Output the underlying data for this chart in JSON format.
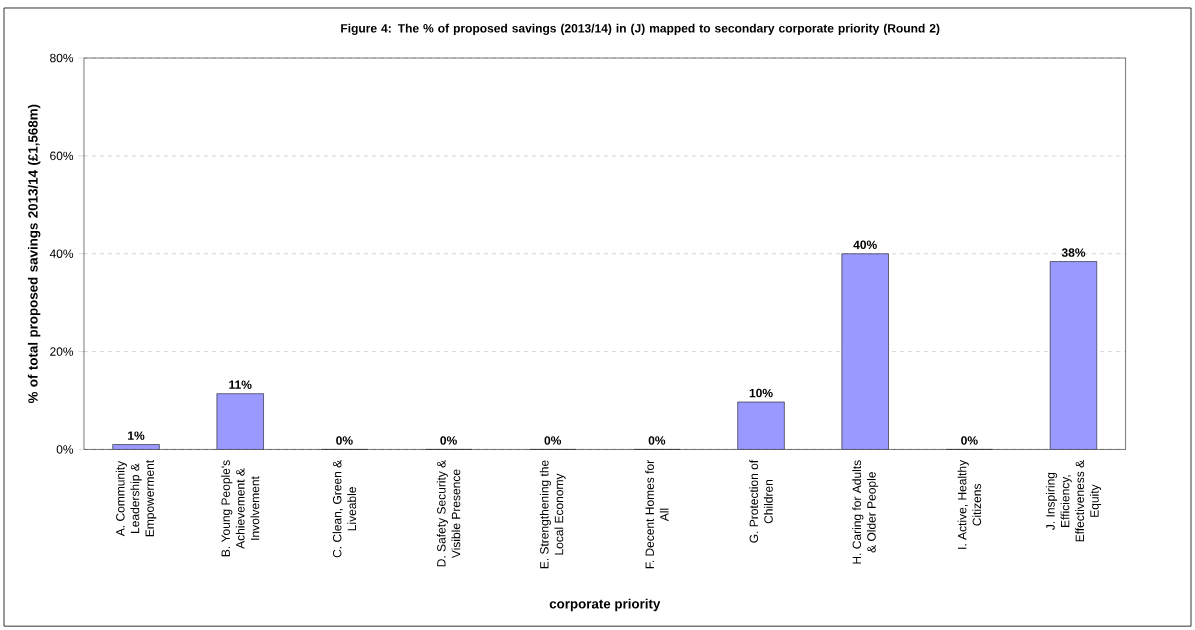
{
  "chart_data": {
    "type": "bar",
    "title": "Figure 4: The % of proposed savings (2013/14) in (J) mapped to secondary corporate priority (Round 2)",
    "xlabel": "corporate priority",
    "ylabel": "% of total proposed savings 2013/14 (£1,568m)",
    "categories": [
      "A. Community Leadership & Empowerment",
      "B. Young People's Achievement & Involvement",
      "C. Clean, Green & Liveable",
      "D. Safety Security & Visible Presence",
      "E. Strengthening the Local Economy",
      "F. Decent Homes for All",
      "G. Protection of Children",
      "H. Caring for Adults & Older People",
      "I. Active, Healthy Citizens",
      "J. Inspiring Efficiency, Effectiveness & Equity"
    ],
    "values": [
      1,
      11.4,
      0,
      0,
      0,
      0,
      9.7,
      40,
      0,
      38.4
    ],
    "value_labels": [
      "1%",
      "11%",
      "0%",
      "0%",
      "0%",
      "0%",
      "10%",
      "40%",
      "0%",
      "38%"
    ],
    "color": "#9999ff",
    "ylim": [
      0,
      80
    ],
    "yticks": [
      {
        "value": 0,
        "label": "0%"
      },
      {
        "value": 20,
        "label": "20%"
      },
      {
        "value": 40,
        "label": "40%"
      },
      {
        "value": 60,
        "label": "60%"
      },
      {
        "value": 80,
        "label": "80%"
      }
    ],
    "grid": "y"
  }
}
